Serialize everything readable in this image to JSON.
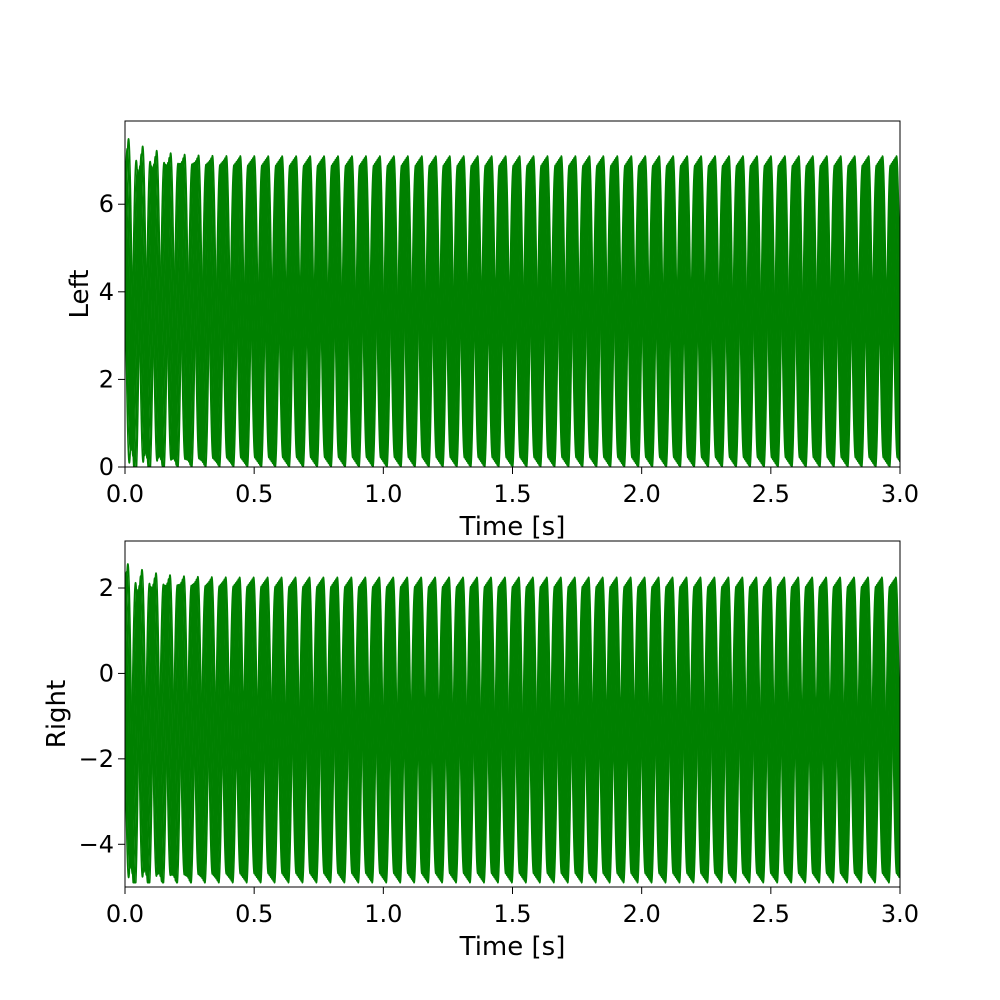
{
  "chart_data": [
    {
      "type": "line",
      "ylabel": "Left",
      "xlabel": "Time [s]",
      "xlim": [
        0,
        3.0
      ],
      "ylim": [
        0,
        7.9
      ],
      "xticks": [
        0.0,
        0.5,
        1.0,
        1.5,
        2.0,
        2.5,
        3.0
      ],
      "xtick_labels": [
        "0.0",
        "0.5",
        "1.0",
        "1.5",
        "2.0",
        "2.5",
        "3.0"
      ],
      "yticks": [
        0,
        2,
        4,
        6
      ],
      "ytick_labels": [
        "0",
        "2",
        "4",
        "6"
      ],
      "color": "#008000",
      "signal": {
        "description_type": "oscillation",
        "frequency_hz": 18.5,
        "steady_min": 0.0,
        "steady_max": 7.1,
        "initial_peak": 7.55,
        "settle_time_s": 0.3,
        "num_traces": 6
      }
    },
    {
      "type": "line",
      "ylabel": "Right",
      "xlabel": "Time [s]",
      "xlim": [
        0,
        3.0
      ],
      "ylim": [
        -5.0,
        3.1
      ],
      "xticks": [
        0.0,
        0.5,
        1.0,
        1.5,
        2.0,
        2.5,
        3.0
      ],
      "xtick_labels": [
        "0.0",
        "0.5",
        "1.0",
        "1.5",
        "2.0",
        "2.5",
        "3.0"
      ],
      "yticks": [
        -4,
        -2,
        0,
        2
      ],
      "ytick_labels": [
        "−4",
        "−2",
        "0",
        "2"
      ],
      "color": "#008000",
      "signal": {
        "description_type": "oscillation",
        "frequency_hz": 18.5,
        "steady_min": -4.9,
        "steady_max": 2.25,
        "initial_peak": 2.6,
        "settle_time_s": 0.3,
        "num_traces": 6
      }
    }
  ]
}
